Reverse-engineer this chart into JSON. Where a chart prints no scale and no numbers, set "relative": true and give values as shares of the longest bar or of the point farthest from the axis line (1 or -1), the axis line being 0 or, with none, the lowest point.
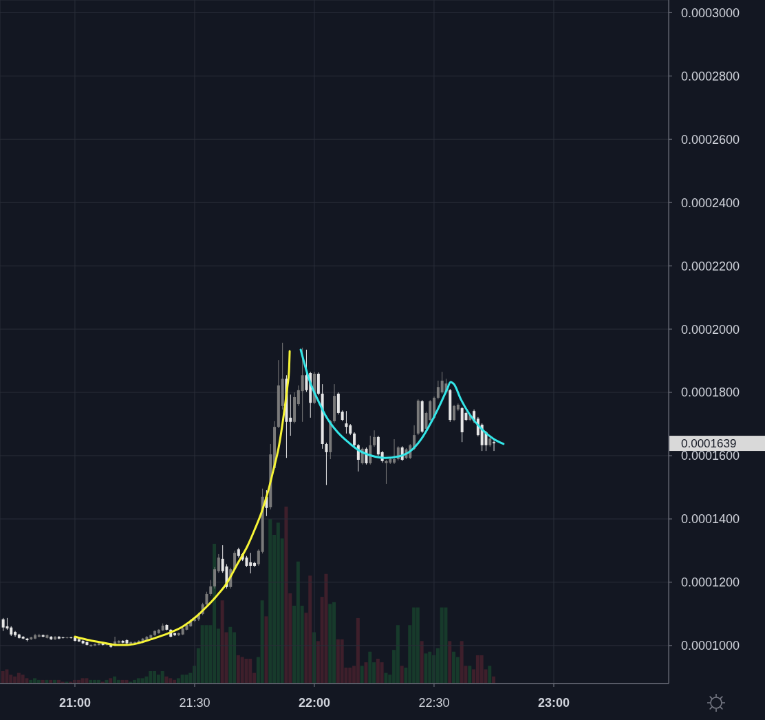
{
  "chart_data": [
    {
      "type": "candlestick",
      "x": [
        20.7,
        20.7167,
        20.7333,
        20.75,
        20.7667,
        20.7833,
        20.8,
        20.8167,
        20.8333,
        20.85,
        20.8667,
        20.8833,
        20.9,
        20.9167,
        20.9333,
        20.95,
        20.9667,
        20.9833,
        21,
        21.0167,
        21.0333,
        21.05,
        21.0667,
        21.0833,
        21.1,
        21.1167,
        21.1333,
        21.15,
        21.1667,
        21.1833,
        21.2,
        21.2167,
        21.2333,
        21.25,
        21.2667,
        21.2833,
        21.3,
        21.3167,
        21.3333,
        21.35,
        21.3667,
        21.3833,
        21.4,
        21.4167,
        21.4333,
        21.45,
        21.4667,
        21.4833,
        21.5,
        21.5167,
        21.5333,
        21.55,
        21.5667,
        21.5833,
        21.6,
        21.6167,
        21.6333,
        21.65,
        21.6667,
        21.6833,
        21.7,
        21.7167,
        21.7333,
        21.75,
        21.7667,
        21.7833,
        21.8,
        21.8167,
        21.8333,
        21.85,
        21.8667,
        21.8833,
        21.9,
        21.9167,
        21.9333,
        21.95,
        21.9667,
        21.9833,
        22,
        22.0167,
        22.0333,
        22.05,
        22.0667,
        22.0833,
        22.1,
        22.1167,
        22.1333,
        22.15,
        22.1667,
        22.1833,
        22.2,
        22.2167,
        22.2333,
        22.25,
        22.2667,
        22.2833,
        22.3,
        22.3167,
        22.3333,
        22.35,
        22.3667,
        22.3833,
        22.4,
        22.4167,
        22.4333,
        22.45,
        22.4667,
        22.4833,
        22.5,
        22.5167,
        22.5333,
        22.55,
        22.5667,
        22.5833,
        22.6,
        22.6167,
        22.6333,
        22.65,
        22.6667,
        22.6833,
        22.7,
        22.7167,
        22.7333,
        22.75
      ],
      "ohlc": [
        [
          0.0001083,
          0.0001087,
          0.0001046,
          0.0001057
        ],
        [
          0.0001061,
          0.0001087,
          0.000105,
          0.0001054
        ],
        [
          0.0001057,
          0.0001061,
          0.000103,
          0.0001035
        ],
        [
          0.0001043,
          0.0001046,
          0.0001028,
          0.0001033
        ],
        [
          0.0001035,
          0.0001037,
          0.0001022,
          0.0001024
        ],
        [
          0.0001028,
          0.000103,
          0.000102,
          0.0001022
        ],
        [
          0.0001022,
          0.0001024,
          0.0001013,
          0.0001017
        ],
        [
          0.000102,
          0.0001028,
          0.0001017,
          0.0001026
        ],
        [
          0.0001022,
          0.0001037,
          0.000102,
          0.0001033
        ],
        [
          0.0001028,
          0.0001037,
          0.0001026,
          0.0001033
        ],
        [
          0.0001033,
          0.0001035,
          0.0001026,
          0.0001028
        ],
        [
          0.0001024,
          0.0001035,
          0.0001022,
          0.0001033
        ],
        [
          0.0001028,
          0.000103,
          0.0001017,
          0.000102
        ],
        [
          0.000102,
          0.000103,
          0.0001017,
          0.0001028
        ],
        [
          0.0001028,
          0.000103,
          0.000102,
          0.0001022
        ],
        [
          0.0001026,
          0.0001028,
          0.0001022,
          0.0001024
        ],
        [
          0.0001024,
          0.0001028,
          0.0001022,
          0.0001026
        ],
        [
          0.0001026,
          0.0001028,
          0.0001022,
          0.0001024
        ],
        [
          0.0001026,
          0.0001028,
          0.0001013,
          0.0001015
        ],
        [
          0.000102,
          0.0001022,
          0.0001011,
          0.0001013
        ],
        [
          0.0001015,
          0.0001017,
          0.0001004,
          0.0001007
        ],
        [
          0.0001011,
          0.0001013,
          0.0001,
          0.0001002
        ],
        [
          9.98e-05,
          0.0001004,
          9.96e-05,
          0.0001002
        ],
        [
          0.0001,
          0.0001007,
          9.98e-05,
          0.0001004
        ],
        [
          0.0001002,
          0.0001009,
          0.0001,
          0.0001007
        ],
        [
          0.0001007,
          0.0001009,
          0.0001,
          0.0001002
        ],
        [
          0.0001002,
          0.0001009,
          0.0001,
          0.0001007
        ],
        [
          0.0001004,
          0.0001007,
          9.93e-05,
          9.96e-05
        ],
        [
          0.0001,
          0.0001028,
          9.98e-05,
          0.0001013
        ],
        [
          0.0001009,
          0.0001017,
          0.0001007,
          0.0001015
        ],
        [
          0.0001015,
          0.0001017,
          0.0001007,
          0.0001009
        ],
        [
          0.0001017,
          0.000102,
          0.0001004,
          0.0001007
        ],
        [
          0.0001004,
          0.0001013,
          0.0001002,
          0.0001011
        ],
        [
          0.0001007,
          0.0001013,
          0.0001004,
          0.0001011
        ],
        [
          0.0001007,
          0.0001017,
          0.0001004,
          0.0001015
        ],
        [
          0.0001009,
          0.0001024,
          0.0001007,
          0.0001022
        ],
        [
          0.0001017,
          0.000103,
          0.0001015,
          0.0001028
        ],
        [
          0.0001024,
          0.0001035,
          0.0001022,
          0.0001033
        ],
        [
          0.0001033,
          0.0001048,
          0.000103,
          0.0001046
        ],
        [
          0.0001039,
          0.0001052,
          0.0001037,
          0.000105
        ],
        [
          0.0001048,
          0.000107,
          0.0001046,
          0.0001063
        ],
        [
          0.0001065,
          0.0001067,
          0.0001048,
          0.000105
        ],
        [
          0.000105,
          0.0001052,
          0.0001026,
          0.0001028
        ],
        [
          0.0001039,
          0.0001041,
          0.000103,
          0.0001033
        ],
        [
          0.0001033,
          0.0001041,
          0.000103,
          0.0001039
        ],
        [
          0.0001035,
          0.0001057,
          0.0001033,
          0.0001054
        ],
        [
          0.000105,
          0.0001067,
          0.0001048,
          0.0001065
        ],
        [
          0.0001061,
          0.0001083,
          0.0001059,
          0.0001078
        ],
        [
          0.0001078,
          0.0001087,
          0.0001074,
          0.0001083
        ],
        [
          0.0001083,
          0.0001104,
          0.0001078,
          0.00011
        ],
        [
          0.00011,
          0.0001135,
          0.0001096,
          0.000113
        ],
        [
          0.000113,
          0.000117,
          0.0001126,
          0.0001163
        ],
        [
          0.0001163,
          0.0001207,
          0.0001157,
          0.0001187
        ],
        [
          0.0001187,
          0.0001248,
          0.000118,
          0.0001241
        ],
        [
          0.0001235,
          0.0001289,
          0.000123,
          0.0001278
        ],
        [
          0.0001274,
          0.0001317,
          0.000123,
          0.0001235
        ],
        [
          0.000125,
          0.0001257,
          0.000118,
          0.0001185
        ],
        [
          0.0001185,
          0.0001246,
          0.000118,
          0.0001241
        ],
        [
          0.0001241,
          0.00013,
          0.0001237,
          0.0001293
        ],
        [
          0.0001304,
          0.0001309,
          0.0001278,
          0.0001283
        ],
        [
          0.0001289,
          0.0001293,
          0.0001267,
          0.0001272
        ],
        [
          0.0001278,
          0.0001283,
          0.0001248,
          0.0001252
        ],
        [
          0.0001263,
          0.0001293,
          0.0001228,
          0.0001252
        ],
        [
          0.0001261,
          0.0001265,
          0.0001248,
          0.0001252
        ],
        [
          0.0001257,
          0.0001304,
          0.0001252,
          0.00013
        ],
        [
          0.0001296,
          0.0001496,
          0.0001291,
          0.000147
        ],
        [
          0.000147,
          0.0001491,
          0.0001409,
          0.0001435
        ],
        [
          0.0001437,
          0.0001637,
          0.000143,
          0.0001604
        ],
        [
          0.0001561,
          0.0001709,
          0.0001557,
          0.0001691
        ],
        [
          0.0001691,
          0.0001902,
          0.0001687,
          0.0001822
        ],
        [
          0.0001757,
          0.0001957,
          0.0001746,
          0.0001843
        ],
        [
          0.0001843,
          0.0001854,
          0.0001593,
          0.0001707
        ],
        [
          0.000172,
          0.0001793,
          0.0001663,
          0.0001707
        ],
        [
          0.0001707,
          0.00018,
          0.0001702,
          0.0001785
        ],
        [
          0.0001763,
          0.0001822,
          0.0001757,
          0.0001807
        ],
        [
          0.0001804,
          0.0001941,
          0.0001707,
          0.0001854
        ],
        [
          0.0001854,
          0.0001935,
          0.0001802,
          0.0001807
        ],
        [
          0.0001861,
          0.0001865,
          0.000172,
          0.0001767
        ],
        [
          0.0001767,
          0.0001865,
          0.0001763,
          0.0001859
        ],
        [
          0.0001859,
          0.0001863,
          0.0001791,
          0.0001796
        ],
        [
          0.0001796,
          0.0001826,
          0.0001622,
          0.0001637
        ],
        [
          0.0001637,
          0.0001641,
          0.0001507,
          0.0001611
        ],
        [
          0.0001611,
          0.0001713,
          0.0001589,
          0.0001709
        ],
        [
          0.0001709,
          0.0001826,
          0.0001704,
          0.0001789
        ],
        [
          0.0001796,
          0.00018,
          0.000173,
          0.0001735
        ],
        [
          0.0001739,
          0.0001743,
          0.0001709,
          0.0001713
        ],
        [
          0.0001702,
          0.0001741,
          0.000167,
          0.0001691
        ],
        [
          0.0001696,
          0.00017,
          0.0001665,
          0.000167
        ],
        [
          0.000167,
          0.0001674,
          0.0001628,
          0.0001633
        ],
        [
          0.0001633,
          0.0001637,
          0.000155,
          0.0001587
        ],
        [
          0.0001576,
          0.0001626,
          0.0001572,
          0.0001622
        ],
        [
          0.0001622,
          0.0001626,
          0.0001572,
          0.0001576
        ],
        [
          0.0001576,
          0.0001663,
          0.0001572,
          0.0001633
        ],
        [
          0.0001633,
          0.000168,
          0.0001628,
          0.0001659
        ],
        [
          0.0001659,
          0.0001663,
          0.00016,
          0.0001604
        ],
        [
          0.0001611,
          0.0001615,
          0.0001578,
          0.0001583
        ],
        [
          0.0001576,
          0.0001587,
          0.0001511,
          0.0001583
        ],
        [
          0.0001578,
          0.0001593,
          0.0001574,
          0.0001589
        ],
        [
          0.0001578,
          0.0001652,
          0.0001574,
          0.0001589
        ],
        [
          0.0001589,
          0.000163,
          0.0001585,
          0.0001626
        ],
        [
          0.0001626,
          0.000163,
          0.0001583,
          0.0001587
        ],
        [
          0.0001593,
          0.0001624,
          0.0001589,
          0.000162
        ],
        [
          0.0001593,
          0.0001637,
          0.0001589,
          0.0001633
        ],
        [
          0.0001622,
          0.0001696,
          0.0001617,
          0.0001665
        ],
        [
          0.000167,
          0.0001778,
          0.0001665,
          0.0001774
        ],
        [
          0.0001772,
          0.0001776,
          0.0001672,
          0.0001676
        ],
        [
          0.0001685,
          0.0001739,
          0.000168,
          0.0001735
        ],
        [
          0.0001713,
          0.0001776,
          0.0001709,
          0.0001772
        ],
        [
          0.000172,
          0.0001787,
          0.0001715,
          0.0001783
        ],
        [
          0.0001783,
          0.0001837,
          0.0001778,
          0.0001817
        ],
        [
          0.00018,
          0.0001865,
          0.0001796,
          0.0001837
        ],
        [
          0.00018,
          0.0001843,
          0.0001796,
          0.0001828
        ],
        [
          0.0001807,
          0.0001811,
          0.0001707,
          0.0001713
        ],
        [
          0.0001713,
          0.0001761,
          0.0001709,
          0.0001757
        ],
        [
          0.0001746,
          0.0001765,
          0.0001741,
          0.0001761
        ],
        [
          0.000175,
          0.0001754,
          0.0001643,
          0.0001674
        ],
        [
          0.0001735,
          0.0001739,
          0.0001709,
          0.0001713
        ],
        [
          0.0001713,
          0.0001733,
          0.0001709,
          0.0001728
        ],
        [
          0.0001741,
          0.0001746,
          0.0001704,
          0.0001709
        ],
        [
          0.0001717,
          0.0001722,
          0.0001661,
          0.0001665
        ],
        [
          0.0001698,
          0.0001702,
          0.0001615,
          0.0001633
        ],
        [
          0.0001674,
          0.0001678,
          0.0001615,
          0.0001633
        ],
        [
          0.0001633,
          0.0001659,
          0.0001628,
          0.0001654
        ],
        [
          0.0001643,
          0.0001648,
          0.0001615,
          0.0001639
        ]
      ],
      "colors": [
        "#e6e6e6",
        "#e6e6e6",
        "#e6e6e6",
        "#e6e6e6",
        "#e6e6e6",
        "#e6e6e6",
        "#e6e6e6",
        "#7a7a7a",
        "#7a7a7a",
        "#7a7a7a",
        "#e6e6e6",
        "#7a7a7a",
        "#e6e6e6",
        "#7a7a7a",
        "#e6e6e6",
        "#e6e6e6",
        "#7a7a7a",
        "#e6e6e6",
        "#e6e6e6",
        "#e6e6e6",
        "#e6e6e6",
        "#e6e6e6",
        "#7a7a7a",
        "#7a7a7a",
        "#7a7a7a",
        "#e6e6e6",
        "#7a7a7a",
        "#e6e6e6",
        "#7a7a7a",
        "#7a7a7a",
        "#e6e6e6",
        "#e6e6e6",
        "#7a7a7a",
        "#7a7a7a",
        "#7a7a7a",
        "#7a7a7a",
        "#7a7a7a",
        "#7a7a7a",
        "#7a7a7a",
        "#7a7a7a",
        "#7a7a7a",
        "#e6e6e6",
        "#e6e6e6",
        "#e6e6e6",
        "#7a7a7a",
        "#7a7a7a",
        "#7a7a7a",
        "#7a7a7a",
        "#7a7a7a",
        "#7a7a7a",
        "#7a7a7a",
        "#7a7a7a",
        "#7a7a7a",
        "#7a7a7a",
        "#7a7a7a",
        "#e6e6e6",
        "#e6e6e6",
        "#7a7a7a",
        "#7a7a7a",
        "#e6e6e6",
        "#e6e6e6",
        "#e6e6e6",
        "#e6e6e6",
        "#e6e6e6",
        "#7a7a7a",
        "#7a7a7a",
        "#e6e6e6",
        "#7a7a7a",
        "#7a7a7a",
        "#7a7a7a",
        "#7a7a7a",
        "#e6e6e6",
        "#e6e6e6",
        "#7a7a7a",
        "#7a7a7a",
        "#7a7a7a",
        "#e6e6e6",
        "#e6e6e6",
        "#7a7a7a",
        "#e6e6e6",
        "#e6e6e6",
        "#e6e6e6",
        "#7a7a7a",
        "#7a7a7a",
        "#e6e6e6",
        "#e6e6e6",
        "#e6e6e6",
        "#e6e6e6",
        "#e6e6e6",
        "#e6e6e6",
        "#7a7a7a",
        "#e6e6e6",
        "#7a7a7a",
        "#7a7a7a",
        "#e6e6e6",
        "#e6e6e6",
        "#7a7a7a",
        "#7a7a7a",
        "#7a7a7a",
        "#7a7a7a",
        "#e6e6e6",
        "#7a7a7a",
        "#7a7a7a",
        "#7a7a7a",
        "#7a7a7a",
        "#e6e6e6",
        "#7a7a7a",
        "#7a7a7a",
        "#7a7a7a",
        "#7a7a7a",
        "#7a7a7a",
        "#7a7a7a",
        "#e6e6e6",
        "#7a7a7a",
        "#7a7a7a",
        "#e6e6e6",
        "#e6e6e6",
        "#7a7a7a",
        "#e6e6e6",
        "#e6e6e6",
        "#e6e6e6",
        "#e6e6e6",
        "#7a7a7a",
        "#e6e6e6"
      ],
      "series": [
        {
          "type": "line",
          "color": "#f7f536",
          "x": [
            21,
            21.06,
            21.118,
            21.175,
            21.218,
            21.262,
            21.319,
            21.391,
            21.448,
            21.506,
            21.549,
            21.592,
            21.635,
            21.678,
            21.721,
            21.75,
            21.779,
            21.808,
            21.831,
            21.851,
            21.865,
            21.879,
            21.888,
            21.894,
            21.897
          ],
          "values": [
            0.0001028,
            0.0001017,
            0.0001009,
            0.0001002,
            0.0001002,
            0.0001007,
            0.000102,
            0.0001039,
            0.0001059,
            0.0001091,
            0.0001122,
            0.0001157,
            0.0001198,
            0.0001257,
            0.0001315,
            0.0001365,
            0.000142,
            0.0001491,
            0.0001561,
            0.0001626,
            0.0001691,
            0.0001767,
            0.0001822,
            0.0001865,
            0.000193
          ]
        },
        {
          "type": "line",
          "color": "#33e6e8",
          "x": [
            21.943,
            21.98,
            22.017,
            22.046,
            22.095,
            22.144,
            22.19,
            22.239,
            22.296,
            22.353,
            22.402,
            22.448,
            22.489,
            22.526,
            22.555,
            22.569,
            22.583,
            22.612,
            22.649,
            22.698,
            22.747,
            22.79
          ],
          "values": [
            0.0001935,
            0.0001837,
            0.0001772,
            0.0001728,
            0.0001676,
            0.0001641,
            0.0001615,
            0.00016,
            0.0001593,
            0.0001598,
            0.0001615,
            0.0001654,
            0.0001707,
            0.0001763,
            0.0001811,
            0.0001833,
            0.0001826,
            0.0001778,
            0.000173,
            0.0001685,
            0.0001654,
            0.0001637
          ]
        }
      ],
      "xlim": [
        20.687,
        23.48
      ],
      "xticks": [
        {
          "value": 21,
          "label": "21:00"
        },
        {
          "value": 21.5,
          "label": "21:30"
        },
        {
          "value": 22,
          "label": "22:00"
        },
        {
          "value": 22.5,
          "label": "22:30"
        },
        {
          "value": 23,
          "label": "23:00"
        }
      ],
      "ylim": [
        8.8e-05,
        0.000304
      ],
      "yticks": [
        {
          "value": 0.0001,
          "label": "0.0001000"
        },
        {
          "value": 0.00012,
          "label": "0.0001200"
        },
        {
          "value": 0.00014,
          "label": "0.0001400"
        },
        {
          "value": 0.00016,
          "label": "0.0001600"
        },
        {
          "value": 0.00018,
          "label": "0.0001800"
        },
        {
          "value": 0.0002,
          "label": "0.0002000"
        },
        {
          "value": 0.00022,
          "label": "0.0002200"
        },
        {
          "value": 0.00024,
          "label": "0.0002400"
        },
        {
          "value": 0.00026,
          "label": "0.0002600"
        },
        {
          "value": 0.00028,
          "label": "0.0002800"
        },
        {
          "value": 0.0003,
          "label": "0.0003000"
        }
      ],
      "annotations": [
        "0.0001639"
      ],
      "grid": true,
      "marker": "none",
      "line_style": "solid"
    },
    {
      "type": "bar",
      "relative": true,
      "tick_labels": false,
      "xlim": [
        20.687,
        23.48
      ],
      "x": [
        20.7,
        20.7167,
        20.7333,
        20.75,
        20.7667,
        20.7833,
        20.8,
        20.8167,
        20.8333,
        20.85,
        20.8667,
        20.8833,
        20.9,
        20.9167,
        20.9333,
        20.95,
        20.9667,
        20.9833,
        21,
        21.0167,
        21.0333,
        21.05,
        21.0667,
        21.0833,
        21.1,
        21.1167,
        21.1333,
        21.15,
        21.1667,
        21.1833,
        21.2,
        21.2167,
        21.2333,
        21.25,
        21.2667,
        21.2833,
        21.3,
        21.3167,
        21.3333,
        21.35,
        21.3667,
        21.3833,
        21.4,
        21.4167,
        21.4333,
        21.45,
        21.4667,
        21.4833,
        21.5,
        21.5167,
        21.5333,
        21.55,
        21.5667,
        21.5833,
        21.6,
        21.6167,
        21.6333,
        21.65,
        21.6667,
        21.6833,
        21.7,
        21.7167,
        21.7333,
        21.75,
        21.7667,
        21.7833,
        21.8,
        21.8167,
        21.8333,
        21.85,
        21.8667,
        21.8833,
        21.9,
        21.9167,
        21.9333,
        21.95,
        21.9667,
        21.9833,
        22,
        22.0167,
        22.0333,
        22.05,
        22.0667,
        22.0833,
        22.1,
        22.1167,
        22.1333,
        22.15,
        22.1667,
        22.1833,
        22.2,
        22.2167,
        22.2333,
        22.25,
        22.2667,
        22.2833,
        22.3,
        22.3167,
        22.3333,
        22.35,
        22.3667,
        22.3833,
        22.4,
        22.4167,
        22.4333,
        22.45,
        22.4667,
        22.4833,
        22.5,
        22.5167,
        22.5333,
        22.55,
        22.5667,
        22.5833,
        22.6,
        22.6167,
        22.6333,
        22.65,
        22.6667,
        22.6833,
        22.7,
        22.7167,
        22.7333,
        22.75
      ],
      "values": [
        0.07,
        0.08,
        0.05,
        0.04,
        0.06,
        0.05,
        0.03,
        0.02,
        0.03,
        0.02,
        0.02,
        0.02,
        0.02,
        0.02,
        0.02,
        0.01,
        0.01,
        0.01,
        0.02,
        0.02,
        0.03,
        0.03,
        0.02,
        0.02,
        0.02,
        0.01,
        0.02,
        0.03,
        0.04,
        0.02,
        0.02,
        0.02,
        0.01,
        0.02,
        0.03,
        0.03,
        0.04,
        0.07,
        0.07,
        0.05,
        0.07,
        0.04,
        0.03,
        0.02,
        0.03,
        0.05,
        0.05,
        0.06,
        0.1,
        0.2,
        0.33,
        0.33,
        0.33,
        0.79,
        0.31,
        0.47,
        0.29,
        0.32,
        0.29,
        0.16,
        0.15,
        0.14,
        0.14,
        0.06,
        0.15,
        0.47,
        0.38,
        0.93,
        0.84,
        0.91,
        0.82,
        1,
        0.51,
        0.44,
        0.69,
        0.44,
        0.4,
        0.61,
        0.29,
        0.24,
        0.49,
        0.62,
        0.45,
        0.46,
        0.25,
        0.25,
        0.09,
        0.09,
        0.1,
        0.37,
        0.1,
        0.12,
        0.18,
        0.12,
        0.14,
        0.12,
        0.06,
        0.05,
        0.19,
        0.33,
        0.1,
        0.09,
        0.33,
        0.43,
        0.43,
        0.24,
        0.17,
        0.18,
        0.16,
        0.2,
        0.43,
        0.43,
        0.24,
        0.18,
        0.15,
        0.24,
        0.1,
        0.1,
        0.08,
        0.16,
        0.16,
        0.08,
        0.1,
        0.04
      ],
      "colors": [
        "#3e1f2b",
        "#3e1f2b",
        "#3e1f2b",
        "#3e1f2b",
        "#3e1f2b",
        "#3e1f2b",
        "#3e1f2b",
        "#173a2b",
        "#173a2b",
        "#173a2b",
        "#3e1f2b",
        "#173a2b",
        "#3e1f2b",
        "#173a2b",
        "#3e1f2b",
        "#3e1f2b",
        "#173a2b",
        "#3e1f2b",
        "#3e1f2b",
        "#3e1f2b",
        "#3e1f2b",
        "#3e1f2b",
        "#173a2b",
        "#173a2b",
        "#173a2b",
        "#3e1f2b",
        "#173a2b",
        "#3e1f2b",
        "#173a2b",
        "#173a2b",
        "#3e1f2b",
        "#3e1f2b",
        "#173a2b",
        "#173a2b",
        "#173a2b",
        "#173a2b",
        "#173a2b",
        "#173a2b",
        "#173a2b",
        "#173a2b",
        "#173a2b",
        "#3e1f2b",
        "#3e1f2b",
        "#3e1f2b",
        "#173a2b",
        "#173a2b",
        "#173a2b",
        "#173a2b",
        "#173a2b",
        "#173a2b",
        "#173a2b",
        "#173a2b",
        "#173a2b",
        "#173a2b",
        "#173a2b",
        "#3e1f2b",
        "#3e1f2b",
        "#173a2b",
        "#173a2b",
        "#3e1f2b",
        "#3e1f2b",
        "#3e1f2b",
        "#3e1f2b",
        "#3e1f2b",
        "#173a2b",
        "#173a2b",
        "#3e1f2b",
        "#173a2b",
        "#173a2b",
        "#173a2b",
        "#173a2b",
        "#3e1f2b",
        "#3e1f2b",
        "#173a2b",
        "#173a2b",
        "#173a2b",
        "#3e1f2b",
        "#3e1f2b",
        "#173a2b",
        "#3e1f2b",
        "#3e1f2b",
        "#3e1f2b",
        "#173a2b",
        "#173a2b",
        "#3e1f2b",
        "#3e1f2b",
        "#3e1f2b",
        "#3e1f2b",
        "#3e1f2b",
        "#3e1f2b",
        "#173a2b",
        "#3e1f2b",
        "#173a2b",
        "#173a2b",
        "#3e1f2b",
        "#3e1f2b",
        "#173a2b",
        "#173a2b",
        "#173a2b",
        "#173a2b",
        "#3e1f2b",
        "#173a2b",
        "#173a2b",
        "#173a2b",
        "#173a2b",
        "#3e1f2b",
        "#173a2b",
        "#173a2b",
        "#173a2b",
        "#173a2b",
        "#173a2b",
        "#173a2b",
        "#3e1f2b",
        "#173a2b",
        "#173a2b",
        "#3e1f2b",
        "#3e1f2b",
        "#173a2b",
        "#3e1f2b",
        "#3e1f2b",
        "#3e1f2b",
        "#3e1f2b",
        "#173a2b",
        "#3e1f2b"
      ]
    }
  ]
}
